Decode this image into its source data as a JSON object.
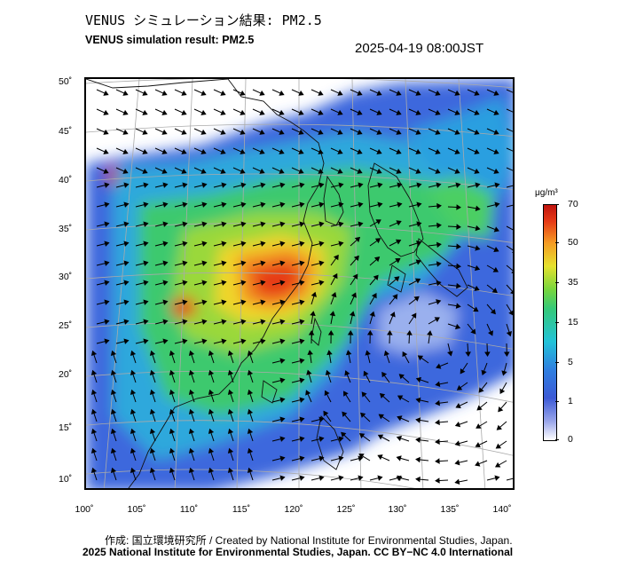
{
  "title_jp": "VENUS シミュレーション結果: PM2.5",
  "title_en": "VENUS simulation result: PM2.5",
  "timestamp": "2025-04-19 08:00JST",
  "lat_labels": [
    "50˚",
    "45˚",
    "40˚",
    "35˚",
    "30˚",
    "25˚",
    "20˚",
    "15˚",
    "10˚"
  ],
  "lon_labels": [
    "100˚",
    "105˚",
    "110˚",
    "115˚",
    "120˚",
    "125˚",
    "130˚",
    "135˚",
    "140˚"
  ],
  "colorbar": {
    "unit": "μg/m³",
    "labels": [
      "70",
      "50",
      "35",
      "15",
      "5",
      "1",
      "0"
    ],
    "colors": {
      "low": "#ffffff",
      "mid": "#35c978",
      "high": "#c0140e"
    }
  },
  "credit_line1": "作成: 国立環境研究所 / Created by National Institute for Environmental Studies, Japan.",
  "credit_line2": "2025 National Institute for Environmental Studies, Japan. CC BY−NC 4.0 International"
}
